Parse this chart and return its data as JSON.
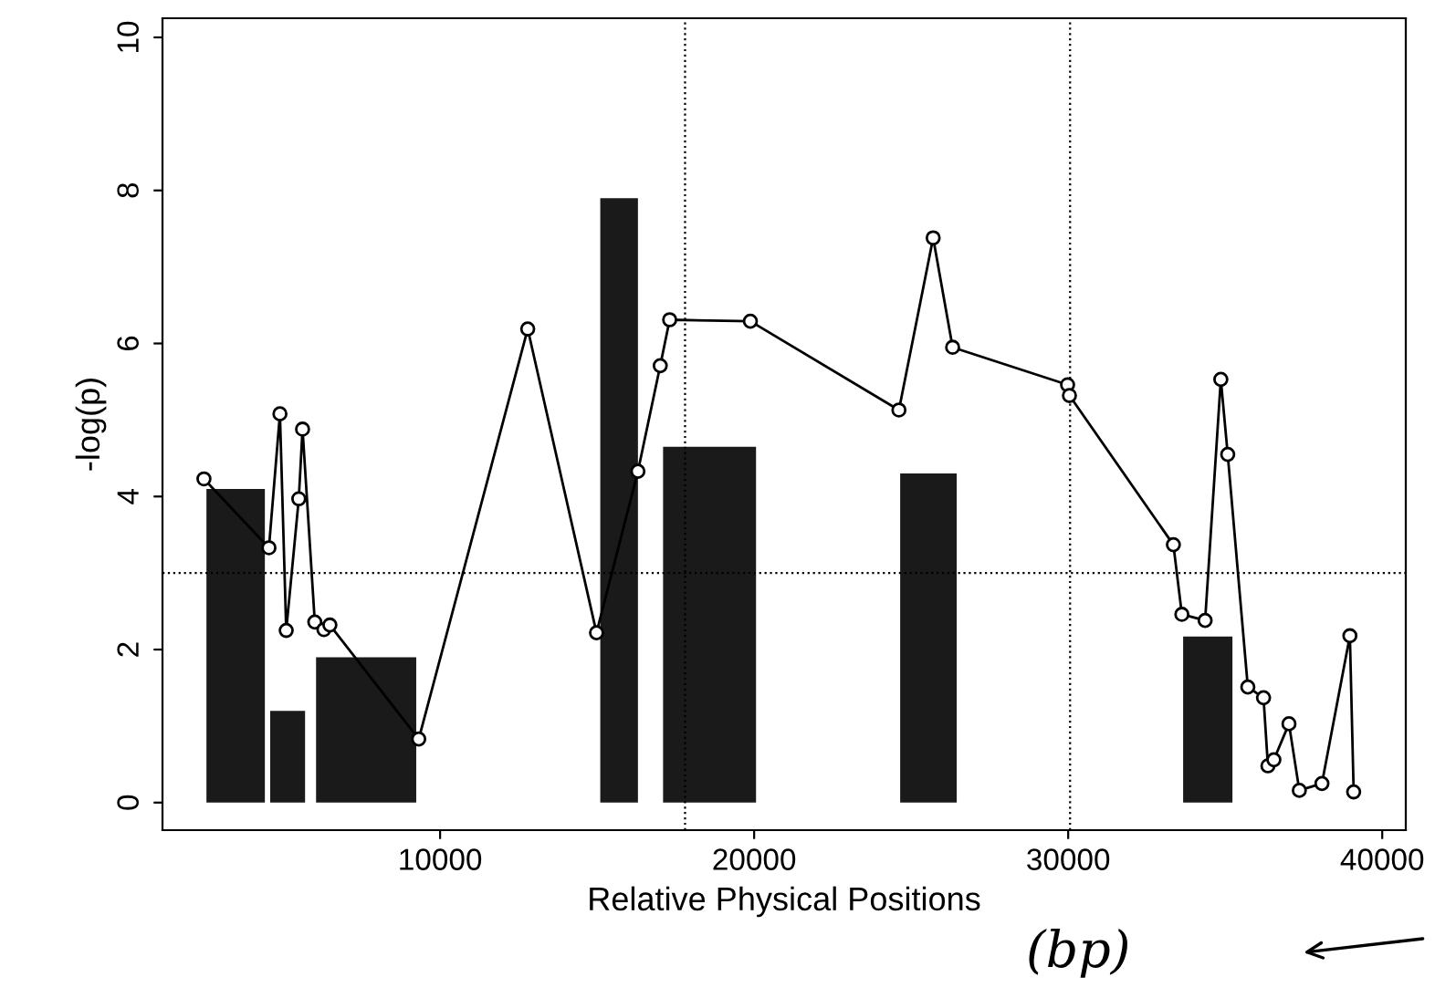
{
  "chart_data": {
    "type": "line",
    "xlabel": "Relative Physical Positions",
    "ylabel": "-log(p)",
    "xlim": [
      1160,
      40750
    ],
    "ylim": [
      -0.36,
      10.25
    ],
    "xticks": [
      10000,
      20000,
      30000,
      40000
    ],
    "yticks": [
      0,
      2,
      4,
      6,
      8,
      10
    ],
    "series": [
      {
        "type": "histogram",
        "color": "#1a1a1a",
        "bins": [
          2560,
          4420,
          4590,
          5700,
          6050,
          9240,
          15100,
          16300,
          17100,
          20060,
          24650,
          26450,
          33660,
          35230
        ],
        "values": [
          4.1,
          0,
          1.2,
          0,
          1.9,
          0,
          7.9,
          0,
          4.65,
          0,
          4.3,
          0,
          2.17
        ]
      },
      {
        "color": "#000000",
        "marker": "circle",
        "x": [
          2480,
          4550,
          4900,
          5100,
          5500,
          5620,
          6010,
          6300,
          6490,
          9320,
          12790,
          14980,
          16300,
          17010,
          17310,
          19880,
          24610,
          25700,
          26320,
          29980,
          30040,
          33350,
          33620,
          34360,
          34860,
          35080,
          35720,
          36220,
          36360,
          36550,
          37030,
          37360,
          38080,
          38970,
          39090
        ],
        "values": [
          4.23,
          3.33,
          5.08,
          2.25,
          3.97,
          4.88,
          2.36,
          2.26,
          2.32,
          0.83,
          6.19,
          2.22,
          4.33,
          5.71,
          6.31,
          6.29,
          5.13,
          7.38,
          5.95,
          5.46,
          5.32,
          3.37,
          2.46,
          2.38,
          5.53,
          4.55,
          1.51,
          1.37,
          0.48,
          0.56,
          1.03,
          0.16,
          0.25,
          2.18,
          0.14
        ]
      }
    ],
    "ref_lines": [
      {
        "axis": "y",
        "value": 3,
        "line_style": "dotted",
        "color": "#000000"
      },
      {
        "axis": "x",
        "value": 17800,
        "line_style": "dotted",
        "color": "#000000"
      },
      {
        "axis": "x",
        "value": 30060,
        "line_style": "dotted",
        "color": "#000000"
      }
    ],
    "annotations": [
      "(bp)"
    ],
    "grid": false,
    "legend": false
  }
}
